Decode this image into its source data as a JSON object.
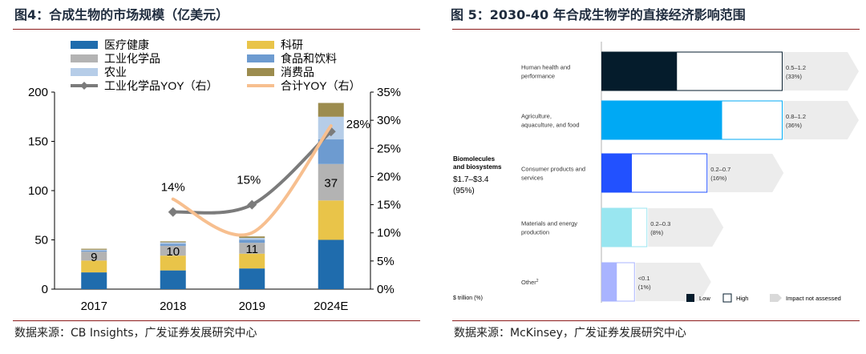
{
  "chart_data": [
    {
      "type": "bar",
      "title": "图4：合成生物的市场规模（亿美元）",
      "source": "数据来源：CB Insights，广发证券发展研究中心",
      "categories": [
        "2017",
        "2018",
        "2019",
        "2024E"
      ],
      "ylim": [
        0,
        200
      ],
      "y_ticks": [
        "0",
        "50",
        "100",
        "150",
        "200"
      ],
      "y2lim": [
        0,
        0.35
      ],
      "y2_ticks": [
        "0%",
        "5%",
        "10%",
        "15%",
        "20%",
        "25%",
        "30%",
        "35%"
      ],
      "legend_position": "top-left",
      "series": [
        {
          "name": "医疗健康",
          "color": "#1f6cad",
          "values": [
            17,
            19,
            21,
            50
          ]
        },
        {
          "name": "科研",
          "color": "#e9c449",
          "values": [
            12,
            15,
            15,
            40
          ]
        },
        {
          "name": "工业化学品",
          "color": "#b3b3b3",
          "values": [
            9,
            10,
            11,
            37
          ]
        },
        {
          "name": "食品和饮料",
          "color": "#6d9bd0",
          "values": [
            1,
            2,
            3,
            25
          ]
        },
        {
          "name": "农业",
          "color": "#b6cde8",
          "values": [
            1,
            1.5,
            2,
            23
          ]
        },
        {
          "name": "消费品",
          "color": "#9c8c4e",
          "values": [
            1,
            1,
            1.5,
            14
          ]
        }
      ],
      "line_series": [
        {
          "name": "工业化学品YOY（右）",
          "color": "#7b7b7b",
          "marker": "diamond",
          "values": [
            null,
            0.137,
            0.15,
            0.28
          ]
        },
        {
          "name": "合计YOY（右）",
          "color": "#f7bf8f",
          "values": [
            null,
            0.16,
            0.1,
            0.29
          ]
        }
      ],
      "bar_labels": [
        {
          "category": "2017",
          "text": "9"
        },
        {
          "category": "2018",
          "text": "10"
        },
        {
          "category": "2019",
          "text": "11"
        },
        {
          "category": "2024E",
          "text": "37"
        }
      ],
      "line_labels": [
        {
          "category": "2018",
          "text": "14%"
        },
        {
          "category": "2019",
          "text": "15%"
        },
        {
          "category": "2024E",
          "text": "28%"
        }
      ]
    },
    {
      "type": "bar",
      "title": "图 5：2030-40 年合成生物学的直接经济影响范围",
      "source": "数据来源：McKinsey，广发证券发展研究中心",
      "summary": {
        "line1": "Biomolecules",
        "line2": "and biosystems",
        "range": "$1.7–$3.4",
        "share": "(95%)"
      },
      "unit_label": "$ trillion (%)",
      "xlim": [
        0,
        1.6
      ],
      "categories": [
        {
          "label": "Human health and performance",
          "low": 0.5,
          "high": 1.2,
          "value_text": "0.5–1.2",
          "share_text": "(33%)",
          "low_color": "#051c2c",
          "high_color": "#ffffff",
          "border_color": "#051c2c"
        },
        {
          "label": "Agriculture, aquaculture, and food",
          "low": 0.8,
          "high": 1.2,
          "value_text": "0.8–1.2",
          "share_text": "(36%)",
          "low_color": "#00a9f4",
          "high_color": "#ffffff",
          "border_color": "#00a9f4"
        },
        {
          "label": "Consumer products and services",
          "low": 0.2,
          "high": 0.7,
          "value_text": "0.2–0.7",
          "share_text": "(16%)",
          "low_color": "#2251ff",
          "high_color": "#ffffff",
          "border_color": "#2251ff"
        },
        {
          "label": "Materials and energy production",
          "low": 0.2,
          "high": 0.3,
          "value_text": "0.2–0.3",
          "share_text": "(8%)",
          "low_color": "#99e6f0",
          "high_color": "#ffffff",
          "border_color": "#99e6f0"
        },
        {
          "label": "Other",
          "label_sup": "2",
          "low": 0.1,
          "high": 0.1,
          "value_text": "<0.1",
          "share_text": "(1%)",
          "low_color": "#a9b4ff",
          "high_color": "#ffffff",
          "border_color": "#a9b4ff"
        }
      ],
      "legend": {
        "low": "Low",
        "high": "High",
        "not_assessed": "Impact not assessed"
      },
      "legend_position": "bottom"
    }
  ]
}
